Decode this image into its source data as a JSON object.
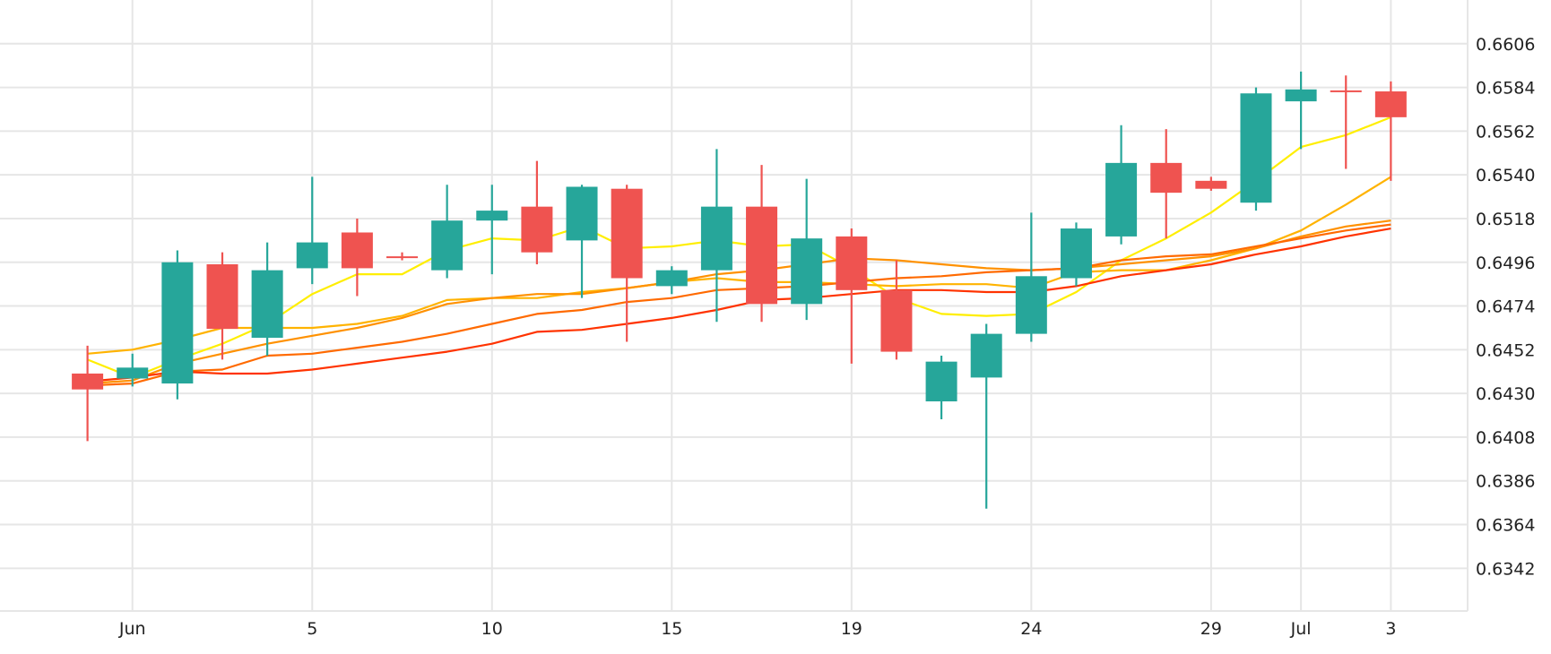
{
  "chart_data": {
    "type": "candlestick",
    "title": "",
    "xlabel": "",
    "ylabel": "",
    "ylim": [
      0.63205,
      0.6628
    ],
    "grid": true,
    "colors": {
      "up": "#26a69a",
      "down": "#ef5350",
      "grid": "#e6e6e6",
      "axis": "#dddddd"
    },
    "y_ticks": [
      "0.6606",
      "0.6584",
      "0.6562",
      "0.6540",
      "0.6518",
      "0.6496",
      "0.6474",
      "0.6452",
      "0.6430",
      "0.6408",
      "0.6386",
      "0.6364",
      "0.6342"
    ],
    "x_ticks": [
      {
        "index": 1,
        "label": "Jun"
      },
      {
        "index": 5,
        "label": "5"
      },
      {
        "index": 9,
        "label": "10"
      },
      {
        "index": 13,
        "label": "15"
      },
      {
        "index": 17,
        "label": "19"
      },
      {
        "index": 21,
        "label": "24"
      },
      {
        "index": 25,
        "label": "29"
      },
      {
        "index": 27,
        "label": "Jul"
      },
      {
        "index": 29,
        "label": "3"
      }
    ],
    "ohlc": [
      [
        0.644,
        0.6454,
        0.6406,
        0.6432
      ],
      [
        0.64375,
        0.645,
        0.64335,
        0.6443
      ],
      [
        0.6435,
        0.6502,
        0.6427,
        0.6496
      ],
      [
        0.6495,
        0.6501,
        0.6447,
        0.64625
      ],
      [
        0.6458,
        0.6506,
        0.6449,
        0.6492
      ],
      [
        0.6493,
        0.6539,
        0.6485,
        0.6506
      ],
      [
        0.6511,
        0.6518,
        0.6479,
        0.6493
      ],
      [
        0.6499,
        0.6501,
        0.6497,
        0.6499
      ],
      [
        0.6492,
        0.6535,
        0.6488,
        0.6517
      ],
      [
        0.6517,
        0.6535,
        0.649,
        0.6522
      ],
      [
        0.6524,
        0.6547,
        0.6495,
        0.6501
      ],
      [
        0.6507,
        0.6535,
        0.6478,
        0.6534
      ],
      [
        0.6533,
        0.6535,
        0.6456,
        0.6488
      ],
      [
        0.6484,
        0.6494,
        0.648,
        0.6492
      ],
      [
        0.6492,
        0.6553,
        0.6466,
        0.6524
      ],
      [
        0.6524,
        0.6545,
        0.6466,
        0.6475
      ],
      [
        0.6475,
        0.6538,
        0.6467,
        0.6508
      ],
      [
        0.6509,
        0.6513,
        0.6445,
        0.6482
      ],
      [
        0.6482,
        0.6497,
        0.6447,
        0.6451
      ],
      [
        0.6426,
        0.6449,
        0.6417,
        0.6446
      ],
      [
        0.6438,
        0.6465,
        0.6372,
        0.646
      ],
      [
        0.646,
        0.6521,
        0.6456,
        0.6489
      ],
      [
        0.6488,
        0.6516,
        0.6484,
        0.6513
      ],
      [
        0.6509,
        0.6565,
        0.6505,
        0.6546
      ],
      [
        0.6546,
        0.6563,
        0.6508,
        0.6531
      ],
      [
        0.6537,
        0.6539,
        0.6532,
        0.6533
      ],
      [
        0.6526,
        0.6584,
        0.6522,
        0.6581
      ],
      [
        0.6577,
        0.6592,
        0.6553,
        0.6583
      ],
      [
        0.65825,
        0.659,
        0.6543,
        0.65825
      ],
      [
        0.6582,
        0.6587,
        0.6537,
        0.6569
      ]
    ],
    "series": [
      {
        "name": "ma-yellow",
        "color": "#ffee00",
        "values": [
          0.6447,
          0.6438,
          0.6447,
          0.6455,
          0.6465,
          0.648,
          0.649,
          0.649,
          0.6502,
          0.6508,
          0.6507,
          0.6514,
          0.6503,
          0.6504,
          0.6507,
          0.6504,
          0.6505,
          0.6493,
          0.6478,
          0.647,
          0.6469,
          0.647,
          0.6481,
          0.6497,
          0.6508,
          0.6521,
          0.6537,
          0.6554,
          0.656,
          0.6569
        ]
      },
      {
        "name": "ma-gold",
        "color": "#ffb300",
        "values": [
          0.645,
          0.6452,
          0.6457,
          0.6463,
          0.6463,
          0.6463,
          0.6465,
          0.6469,
          0.6477,
          0.6478,
          0.6478,
          0.6481,
          0.6483,
          0.6486,
          0.6488,
          0.6486,
          0.6486,
          0.6485,
          0.6484,
          0.6485,
          0.6485,
          0.6483,
          0.6491,
          0.6492,
          0.6492,
          0.6497,
          0.6503,
          0.6512,
          0.6525,
          0.6539
        ]
      },
      {
        "name": "ma-orange",
        "color": "#ff9100",
        "values": [
          0.6435,
          0.64365,
          0.6445,
          0.645,
          0.6455,
          0.6459,
          0.6463,
          0.6468,
          0.6475,
          0.6478,
          0.648,
          0.648,
          0.6483,
          0.6486,
          0.649,
          0.6492,
          0.6495,
          0.6498,
          0.6497,
          0.6495,
          0.6493,
          0.6492,
          0.6493,
          0.6495,
          0.6497,
          0.6499,
          0.6503,
          0.6509,
          0.6514,
          0.6517
        ]
      },
      {
        "name": "ma-dark-orange",
        "color": "#ff6a00",
        "values": [
          0.6434,
          0.6435,
          0.6441,
          0.6442,
          0.6449,
          0.645,
          0.6453,
          0.6456,
          0.646,
          0.6465,
          0.647,
          0.6472,
          0.6476,
          0.6478,
          0.6482,
          0.6483,
          0.6484,
          0.6486,
          0.6488,
          0.6489,
          0.6491,
          0.6492,
          0.6493,
          0.6497,
          0.6499,
          0.65,
          0.6504,
          0.6508,
          0.6512,
          0.6515
        ]
      },
      {
        "name": "ma-red",
        "color": "#ff3300",
        "values": [
          0.6436,
          0.6438,
          0.6441,
          0.644,
          0.644,
          0.6442,
          0.6445,
          0.6448,
          0.6451,
          0.6455,
          0.6461,
          0.6462,
          0.6465,
          0.6468,
          0.6472,
          0.6477,
          0.6478,
          0.648,
          0.6482,
          0.6482,
          0.6481,
          0.6481,
          0.6484,
          0.6489,
          0.6492,
          0.6495,
          0.65,
          0.6504,
          0.6509,
          0.6513
        ]
      }
    ]
  }
}
